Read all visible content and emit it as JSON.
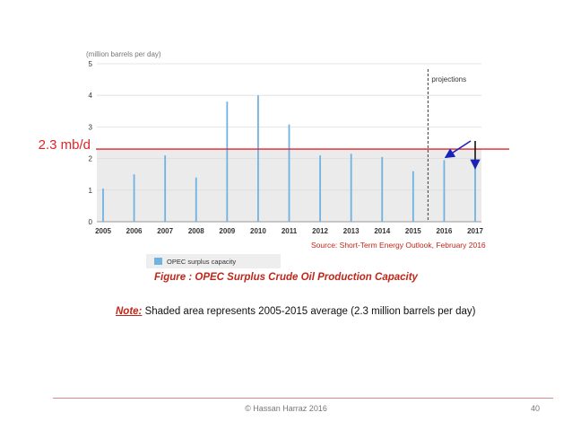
{
  "chart_data": {
    "type": "bar",
    "unit_label": "(million barrels per day)",
    "categories": [
      "2005",
      "2006",
      "2007",
      "2008",
      "2009",
      "2010",
      "2011",
      "2012",
      "2013",
      "2014",
      "2015",
      "2016",
      "2017"
    ],
    "series": [
      {
        "name": "OPEC surplus capacity",
        "values": [
          1.05,
          1.5,
          2.1,
          1.4,
          3.8,
          4.0,
          3.08,
          2.1,
          2.15,
          2.05,
          1.6,
          1.95,
          1.8
        ]
      }
    ],
    "ylim": [
      0,
      5
    ],
    "yticks": [
      "0",
      "1",
      "2",
      "3",
      "4",
      "5"
    ],
    "average": 2.3,
    "average_label": "2.3 mb/d",
    "projection_start_after": "2015",
    "projection_label": "projections",
    "grid": true,
    "legend_position": "bottom-left"
  },
  "colors": {
    "bar": "#6fb3e3",
    "shade": "#ebebeb",
    "average_line": "#e0242b",
    "arrow": "#1a22b8",
    "accent_text": "#c0271a"
  },
  "source": "Source: Short-Term Energy Outlook, February 2016",
  "figure_caption": "Figure : OPEC Surplus Crude Oil Production Capacity",
  "note": {
    "label": "Note:",
    "text": " Shaded area represents 2005-2015 average (2.3 million barrels per day)"
  },
  "footer": {
    "copyright": "©  Hassan Harraz  2016",
    "page_number": "40"
  }
}
